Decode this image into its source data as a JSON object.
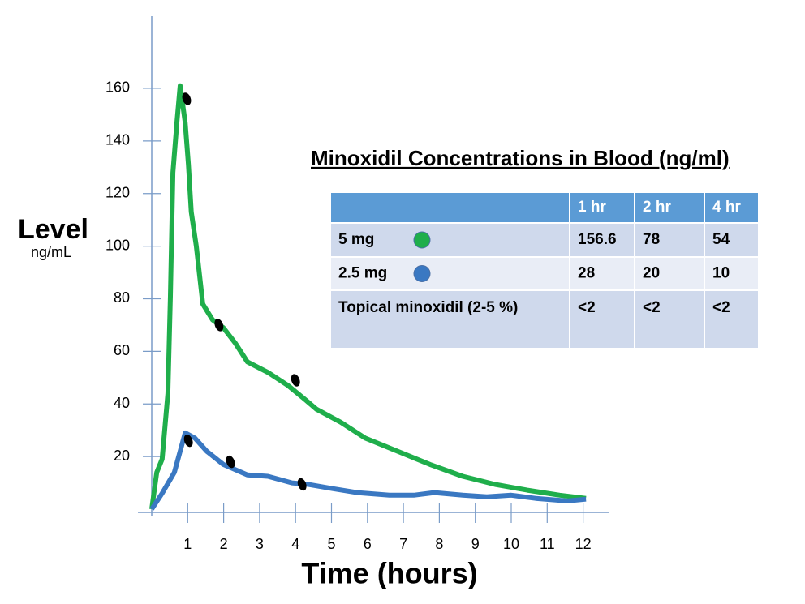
{
  "chart_data": {
    "type": "line",
    "y_label": "Level",
    "y_unit": "ng/mL",
    "x_label": "Time (hours)",
    "xlim": [
      0,
      12.2
    ],
    "ylim": [
      0,
      185
    ],
    "xticks": [
      1,
      2,
      3,
      4,
      5,
      6,
      7,
      8,
      9,
      10,
      11,
      12
    ],
    "yticks": [
      20,
      40,
      60,
      80,
      100,
      120,
      140,
      160
    ],
    "series": [
      {
        "name": "5 mg",
        "color": "#1fae4b",
        "x": [
          0,
          0.14,
          0.29,
          0.45,
          0.52,
          0.59,
          0.7,
          0.79,
          0.93,
          1.02,
          1.1,
          1.24,
          1.42,
          1.69,
          1.99,
          2.33,
          2.66,
          3.23,
          3.79,
          4.24,
          4.58,
          5.26,
          5.94,
          6.84,
          7.74,
          8.65,
          9.55,
          10.45,
          11.35,
          12.08
        ],
        "values": [
          0,
          14,
          19,
          44,
          81,
          128,
          147,
          161,
          147,
          131,
          113,
          100,
          78,
          72,
          69,
          63,
          56,
          52,
          47,
          42,
          38,
          33,
          27,
          22,
          17,
          12.5,
          9.4,
          7.2,
          5.3,
          4.1
        ]
      },
      {
        "name": "2.5 mg",
        "color": "#3a78c2",
        "x": [
          0,
          0.29,
          0.63,
          0.93,
          1.2,
          1.53,
          1.99,
          2.66,
          3.23,
          3.9,
          4.36,
          5.03,
          5.71,
          6.61,
          7.29,
          7.86,
          8.65,
          9.32,
          10,
          10.68,
          11.56,
          12.08
        ],
        "values": [
          0,
          6,
          14,
          29,
          27,
          22,
          17,
          13,
          12.5,
          10,
          9.4,
          7.8,
          6.3,
          5.3,
          5.3,
          6.3,
          5.3,
          4.7,
          5.3,
          4.1,
          3.1,
          3.8
        ]
      }
    ],
    "markers": {
      "color": "#000000",
      "x": [
        0.97,
        1.87,
        4.0,
        1.02,
        2.19,
        4.18
      ],
      "values": [
        156,
        70,
        49,
        26,
        18,
        9.4
      ]
    }
  },
  "table": {
    "title": "Minoxidil Concentrations in Blood (ng/ml)",
    "columns": [
      "1 hr",
      "2 hr",
      "4 hr"
    ],
    "rows": [
      {
        "cells": [
          156.6,
          78,
          54
        ]
      },
      {
        "cells": [
          28,
          20,
          10
        ]
      },
      {
        "label": "Topical minoxidil (2-5 %)",
        "cells": [
          "<2",
          "<2",
          "<2"
        ]
      }
    ]
  }
}
